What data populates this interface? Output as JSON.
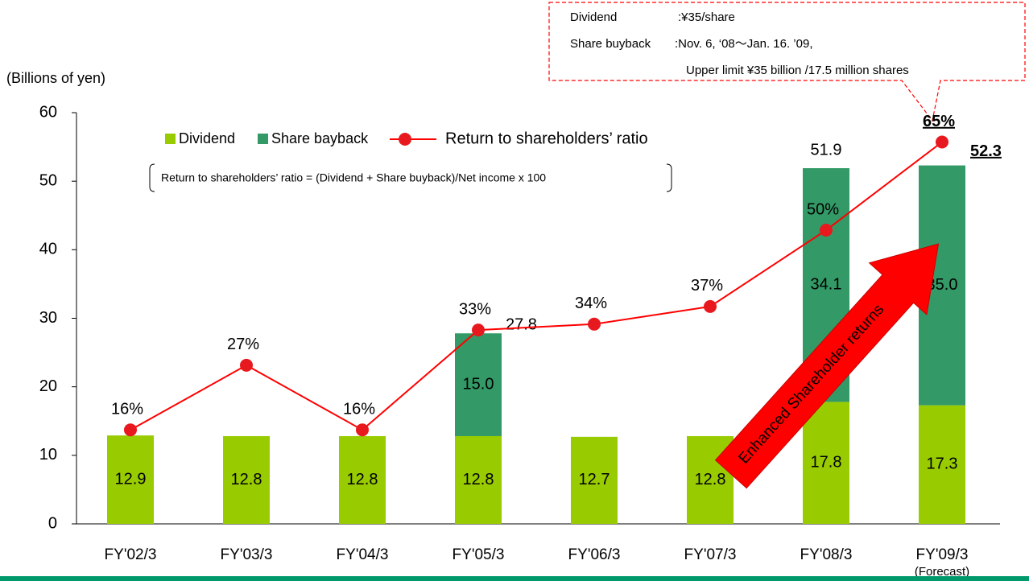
{
  "chart_data": {
    "type": "bar",
    "y_axis_label": "(Billions of yen)",
    "categories": [
      "FY'02/3",
      "FY'03/3",
      "FY'04/3",
      "FY'05/3",
      "FY'06/3",
      "FY'07/3",
      "FY'08/3",
      "FY'09/3"
    ],
    "category_note": "(Forecast)",
    "ylim": [
      0,
      60
    ],
    "yticks": [
      0,
      10,
      20,
      30,
      40,
      50,
      60
    ],
    "y2lim": [
      0,
      70
    ],
    "series": [
      {
        "name": "Dividend",
        "color": "#99cc00",
        "values": [
          12.9,
          12.8,
          12.8,
          12.8,
          12.7,
          12.8,
          17.8,
          17.3
        ]
      },
      {
        "name": "Share bayback",
        "color": "#339966",
        "values": [
          null,
          null,
          null,
          15.0,
          null,
          null,
          34.1,
          35.0
        ],
        "value_labels": [
          null,
          null,
          null,
          "15.0",
          null,
          null,
          "34.1",
          "35.0"
        ]
      },
      {
        "name": "Return to shareholders’ ratio",
        "type": "line",
        "axis": "y2",
        "color": "#ff0000",
        "values": [
          16,
          27,
          16,
          33,
          34,
          37,
          50,
          65
        ],
        "value_labels": [
          "16%",
          "27%",
          "16%",
          "33%",
          "34%",
          "37%",
          "50%",
          "65%"
        ]
      }
    ],
    "totals": [
      null,
      null,
      null,
      27.8,
      null,
      null,
      51.9,
      52.3
    ],
    "formula_note": "Return to shareholders’ ratio = (Dividend + Share buyback)/Net income x 100",
    "callout": {
      "row1_label": "Dividend",
      "row1_text": ":¥35/share",
      "row2_label": "Share buyback",
      "row2_text": ":Nov. 6, ‘08～Jan. 16. ’09,",
      "row3_text": "Upper limit ¥35 billion /17.5 million shares"
    },
    "arrow_annotation": "Enhanced Shareholder returns"
  }
}
